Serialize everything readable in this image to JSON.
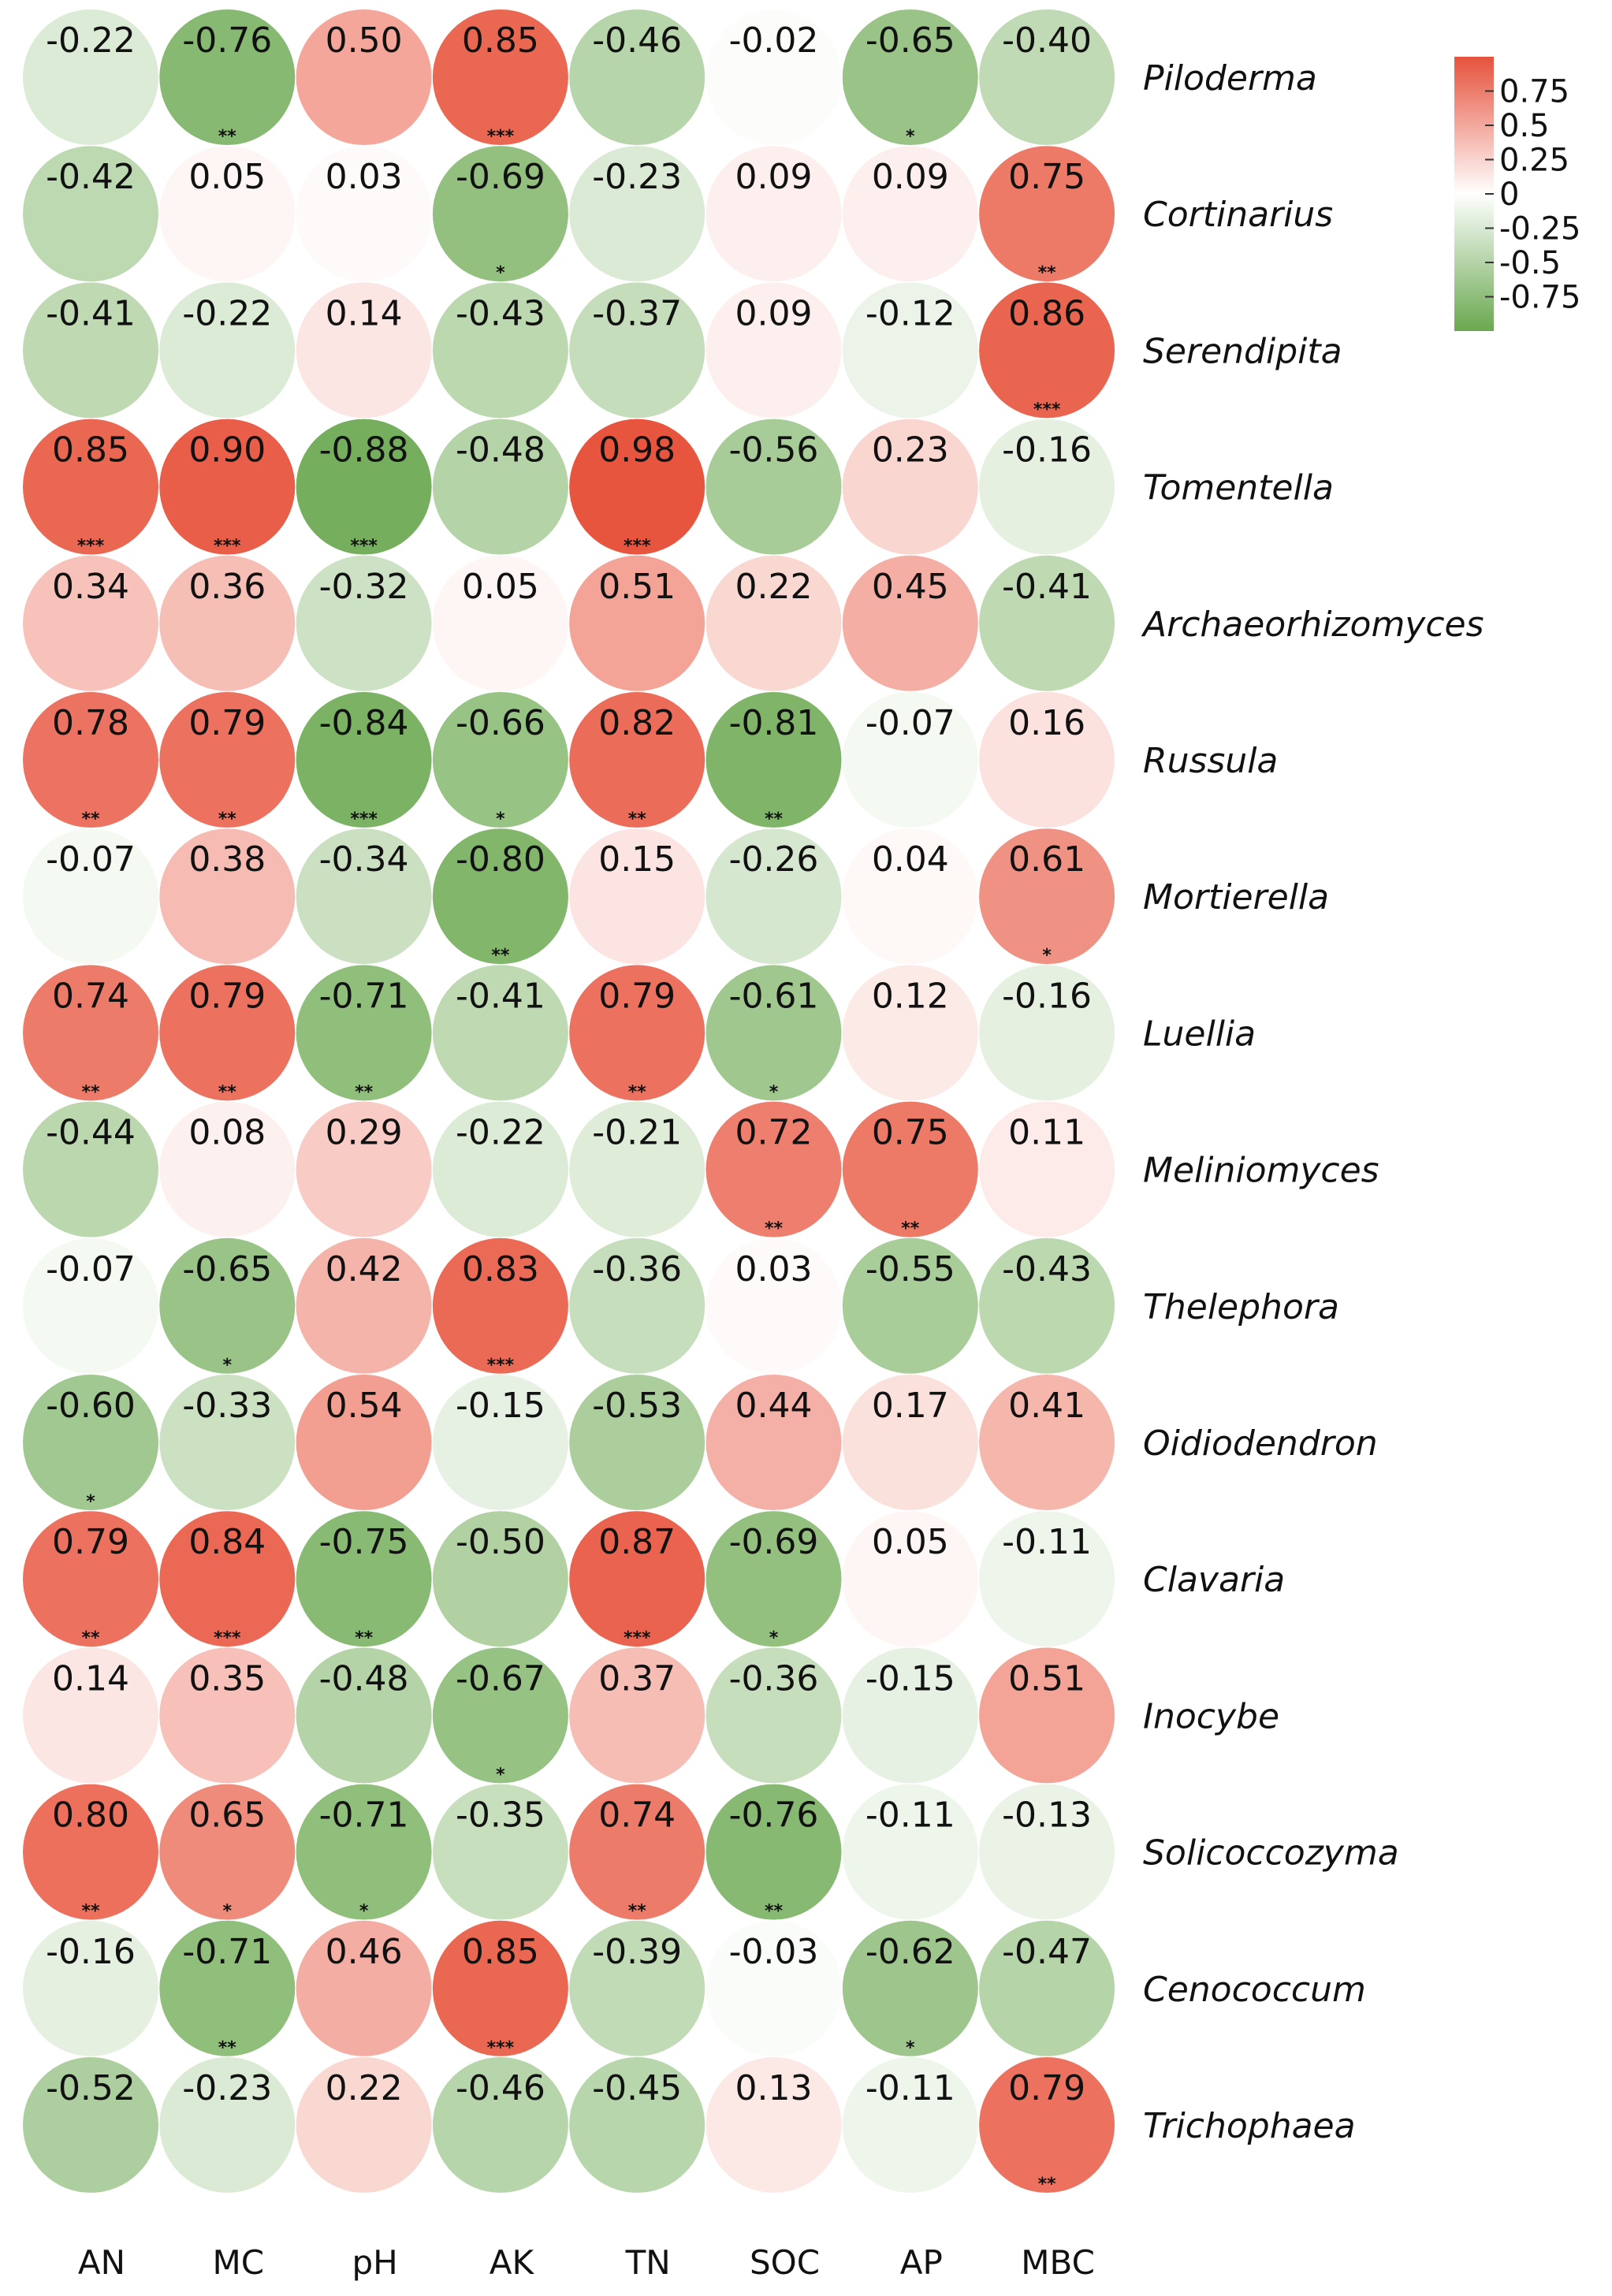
{
  "chart_data": {
    "type": "heatmap",
    "mark": "circle",
    "columns": [
      "AN",
      "MC",
      "pH",
      "AK",
      "TN",
      "SOC",
      "AP",
      "MBC"
    ],
    "rows": [
      "Piloderma",
      "Cortinarius",
      "Serendipita",
      "Tomentella",
      "Archaeorhizomyces",
      "Russula",
      "Mortierella",
      "Luellia",
      "Meliniomyces",
      "Thelephora",
      "Oidiodendron",
      "Clavaria",
      "Inocybe",
      "Solicoccozyma",
      "Cenococcum",
      "Trichophaea"
    ],
    "values": [
      [
        -0.22,
        -0.76,
        0.5,
        0.85,
        -0.46,
        -0.02,
        -0.65,
        -0.4
      ],
      [
        -0.42,
        0.05,
        0.03,
        -0.69,
        -0.23,
        0.09,
        0.09,
        0.75
      ],
      [
        -0.41,
        -0.22,
        0.14,
        -0.43,
        -0.37,
        0.09,
        -0.12,
        0.86
      ],
      [
        0.85,
        0.9,
        -0.88,
        -0.48,
        0.98,
        -0.56,
        0.23,
        -0.16
      ],
      [
        0.34,
        0.36,
        -0.32,
        0.05,
        0.51,
        0.22,
        0.45,
        -0.41
      ],
      [
        0.78,
        0.79,
        -0.84,
        -0.66,
        0.82,
        -0.81,
        -0.07,
        0.16
      ],
      [
        -0.07,
        0.38,
        -0.34,
        -0.8,
        0.15,
        -0.26,
        0.04,
        0.61
      ],
      [
        0.74,
        0.79,
        -0.71,
        -0.41,
        0.79,
        -0.61,
        0.12,
        -0.16
      ],
      [
        -0.44,
        0.08,
        0.29,
        -0.22,
        -0.21,
        0.72,
        0.75,
        0.11
      ],
      [
        -0.07,
        -0.65,
        0.42,
        0.83,
        -0.36,
        0.03,
        -0.55,
        -0.43
      ],
      [
        -0.6,
        -0.33,
        0.54,
        -0.15,
        -0.53,
        0.44,
        0.17,
        0.41
      ],
      [
        0.79,
        0.84,
        -0.75,
        -0.5,
        0.87,
        -0.69,
        0.05,
        -0.11
      ],
      [
        0.14,
        0.35,
        -0.48,
        -0.67,
        0.37,
        -0.36,
        -0.15,
        0.51
      ],
      [
        0.8,
        0.65,
        -0.71,
        -0.35,
        0.74,
        -0.76,
        -0.11,
        -0.13
      ],
      [
        -0.16,
        -0.71,
        0.46,
        0.85,
        -0.39,
        -0.03,
        -0.62,
        -0.47
      ],
      [
        -0.52,
        -0.23,
        0.22,
        -0.46,
        -0.45,
        0.13,
        -0.11,
        0.79
      ]
    ],
    "significance": [
      [
        "",
        "**",
        "",
        "***",
        "",
        "",
        "*",
        ""
      ],
      [
        "",
        "",
        "",
        "*",
        "",
        "",
        "",
        "**"
      ],
      [
        "",
        "",
        "",
        "",
        "",
        "",
        "",
        "***"
      ],
      [
        "***",
        "***",
        "***",
        "",
        "***",
        "",
        "",
        ""
      ],
      [
        "",
        "",
        "",
        "",
        "",
        "",
        "",
        ""
      ],
      [
        "**",
        "**",
        "***",
        "*",
        "**",
        "**",
        "",
        ""
      ],
      [
        "",
        "",
        "",
        "**",
        "",
        "",
        "",
        "*"
      ],
      [
        "**",
        "**",
        "**",
        "",
        "**",
        "*",
        "",
        ""
      ],
      [
        "",
        "",
        "",
        "",
        "",
        "**",
        "**",
        ""
      ],
      [
        "",
        "*",
        "",
        "***",
        "",
        "",
        "",
        ""
      ],
      [
        "*",
        "",
        "",
        "",
        "",
        "",
        "",
        ""
      ],
      [
        "**",
        "***",
        "**",
        "",
        "***",
        "*",
        "",
        ""
      ],
      [
        "",
        "",
        "",
        "*",
        "",
        "",
        "",
        ""
      ],
      [
        "**",
        "*",
        "*",
        "",
        "**",
        "**",
        "",
        ""
      ],
      [
        "",
        "**",
        "",
        "***",
        "",
        "",
        "*",
        ""
      ],
      [
        "",
        "",
        "",
        "",
        "",
        "",
        "",
        "**"
      ]
    ],
    "value_range": [
      -1,
      1
    ],
    "colors": {
      "negative": "#6aa84f",
      "zero": "#ffffff",
      "positive": "#e8553e"
    },
    "legend": {
      "placement": "top-right",
      "ticks": [
        0.75,
        0.5,
        0.25,
        0,
        -0.25,
        -0.5,
        -0.75
      ],
      "tick_labels": [
        "0.75",
        "0.5",
        "0.25",
        "0",
        "-0.25",
        "-0.5",
        "-0.75"
      ]
    }
  }
}
